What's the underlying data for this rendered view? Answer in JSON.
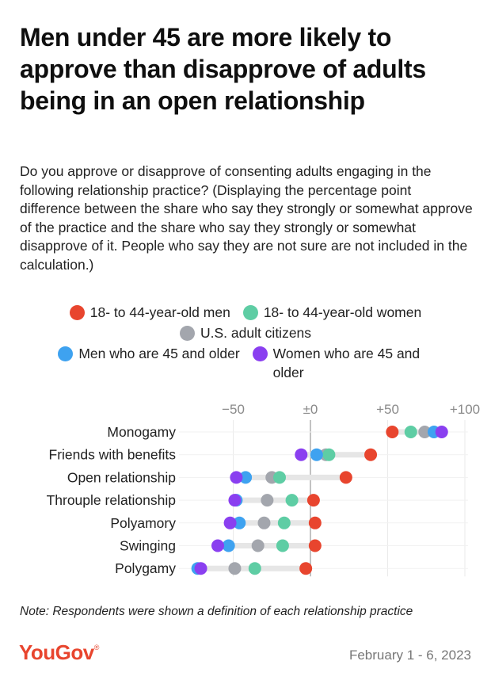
{
  "title": "Men under 45 are more likely to approve than disapprove of adults being in an open relationship",
  "subtitle": "Do you approve or disapprove of consenting adults engaging in the following relationship practice? (Displaying the percentage point difference between the share who say they strongly or somewhat approve of the practice and the share who say they strongly or somewhat disapprove of it. People who say they are not sure are not included in the calculation.)",
  "note": "Note: Respondents were shown a definition of each relationship practice",
  "brand": "YouGov",
  "date": "February 1 - 6, 2023",
  "colors": {
    "men_18_44": "#e8452e",
    "women_18_44": "#5ecda4",
    "us_adults": "#a3a6ad",
    "men_45_plus": "#3ea2f0",
    "women_45_plus": "#8a3ff0",
    "range_bar": "#e6e6e6",
    "zero_line": "#9a9a9a",
    "grid": "#eaeaea"
  },
  "chart_data": {
    "type": "scatter",
    "subtype": "dot-plot",
    "categories": [
      "Monogamy",
      "Friends with benefits",
      "Open relationship",
      "Throuple relationship",
      "Polyamory",
      "Swinging",
      "Polygamy"
    ],
    "x_ticks": [
      -50,
      0,
      50,
      100
    ],
    "x_tick_labels": [
      "−50",
      "±0",
      "+50",
      "+100"
    ],
    "xlim": [
      -80,
      102
    ],
    "grid": true,
    "legend_position": "top",
    "series": [
      {
        "name": "18- to 44-year-old men",
        "color_key": "men_18_44",
        "values": [
          53,
          39,
          23,
          2,
          3,
          3,
          -3
        ]
      },
      {
        "name": "18- to 44-year-old women",
        "color_key": "women_18_44",
        "values": [
          65,
          12,
          -20,
          -12,
          -17,
          -18,
          -36
        ]
      },
      {
        "name": "U.S. adult citizens",
        "color_key": "us_adults",
        "values": [
          74,
          10,
          -25,
          -28,
          -30,
          -34,
          -49
        ]
      },
      {
        "name": "Men who are 45 and older",
        "color_key": "men_45_plus",
        "values": [
          80,
          4,
          -42,
          -48,
          -46,
          -53,
          -73
        ]
      },
      {
        "name": "Women who are 45 and older",
        "color_key": "women_45_plus",
        "values": [
          85,
          -6,
          -48,
          -49,
          -52,
          -60,
          -71
        ]
      }
    ],
    "legend_rows": [
      [
        0,
        1
      ],
      [
        2
      ],
      [
        3,
        4
      ]
    ]
  }
}
